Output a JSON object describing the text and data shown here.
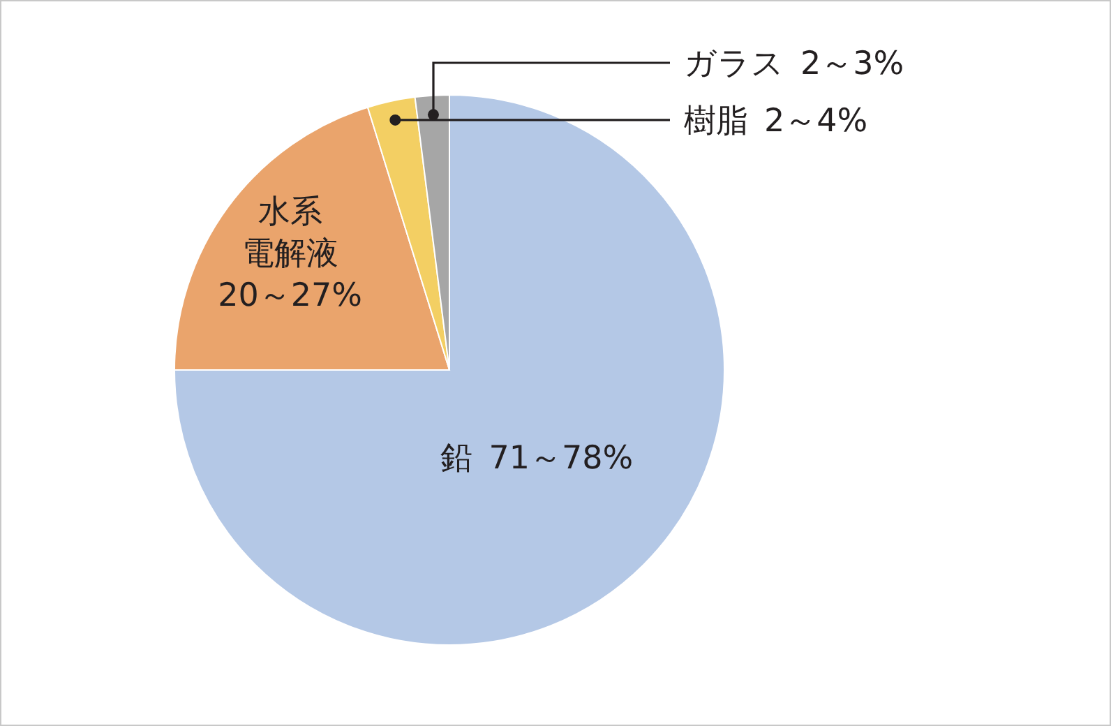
{
  "chart_data": {
    "type": "pie",
    "categories": [
      "鉛",
      "水系電解液",
      "樹脂",
      "ガラス"
    ],
    "values": [
      75,
      20.2,
      2.8,
      2
    ],
    "annotations": [
      "71～78%",
      "20～27%",
      "2～4%",
      "2～3%"
    ],
    "colors": [
      "#b4c8e6",
      "#eaa46c",
      "#f3cf63",
      "#a6a6a6"
    ]
  }
}
